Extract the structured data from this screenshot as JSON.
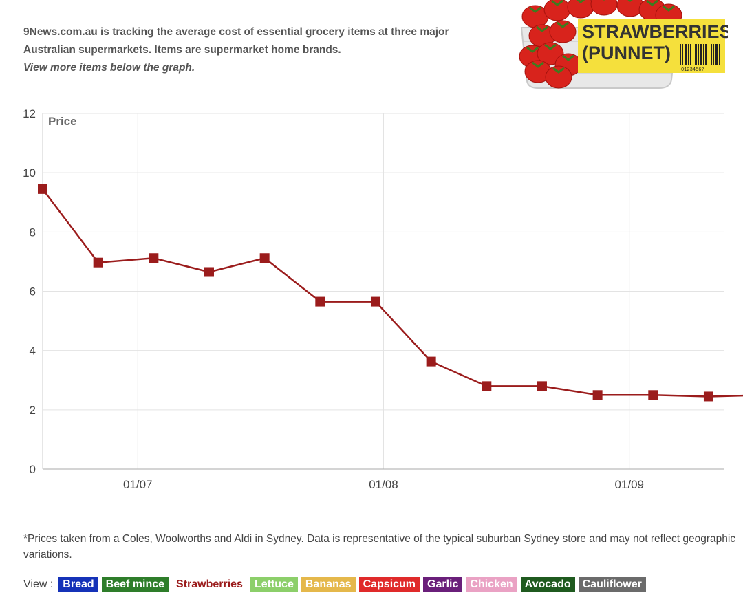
{
  "intro": {
    "line1": "9News.com.au is tracking the average cost of essential grocery items at three major",
    "line2": "Australian supermarkets. Items are supermarket home brands.",
    "line3": "View more items below the graph."
  },
  "badge": {
    "label_line1": "STRAWBERRIES",
    "label_line2": "(PUNNET)",
    "barcode_digits": "0123456?",
    "label_bg": "#f5e03c",
    "strawberry_color": "#d8231c",
    "icon": "strawberries-punnet-image"
  },
  "chart_data": {
    "type": "line",
    "ylabel": "Price",
    "ylim": [
      0,
      12
    ],
    "yticks": [
      0,
      2,
      4,
      6,
      8,
      10,
      12
    ],
    "xlim": [
      "2023-06-19",
      "2023-09-13"
    ],
    "xticks": [
      {
        "date": "2023-07-01",
        "label": "01/07"
      },
      {
        "date": "2023-08-01",
        "label": "01/08"
      },
      {
        "date": "2023-09-01",
        "label": "01/09"
      }
    ],
    "grid": true,
    "series": [
      {
        "name": "Strawberries",
        "color": "#9b1c1c",
        "points": [
          {
            "x": "2023-06-19",
            "y": 9.45
          },
          {
            "x": "2023-06-26",
            "y": 6.97
          },
          {
            "x": "2023-07-03",
            "y": 7.12
          },
          {
            "x": "2023-07-10",
            "y": 6.65
          },
          {
            "x": "2023-07-17",
            "y": 7.12
          },
          {
            "x": "2023-07-24",
            "y": 5.65
          },
          {
            "x": "2023-07-31",
            "y": 5.65
          },
          {
            "x": "2023-08-07",
            "y": 3.63
          },
          {
            "x": "2023-08-14",
            "y": 2.8
          },
          {
            "x": "2023-08-21",
            "y": 2.8
          },
          {
            "x": "2023-08-28",
            "y": 2.5
          },
          {
            "x": "2023-09-04",
            "y": 2.5
          },
          {
            "x": "2023-09-11",
            "y": 2.45
          },
          {
            "x": "2023-09-18",
            "y": 2.5
          }
        ]
      }
    ]
  },
  "footnote": "*Prices taken from a Coles, Woolworths and Aldi in Sydney. Data is representative of the typical suburban Sydney store and may not reflect geographic variations.",
  "view": {
    "label": "View :",
    "items": [
      {
        "label": "Bread",
        "color": "#1532b8",
        "active": false
      },
      {
        "label": "Beef mince",
        "color": "#2e7d2a",
        "active": false
      },
      {
        "label": "Strawberries",
        "color": "#9b1c1c",
        "active": true
      },
      {
        "label": "Lettuce",
        "color": "#8ccf6a",
        "active": false
      },
      {
        "label": "Bananas",
        "color": "#e5b84b",
        "active": false
      },
      {
        "label": "Capsicum",
        "color": "#e02a2a",
        "active": false
      },
      {
        "label": "Garlic",
        "color": "#6a1f7a",
        "active": false
      },
      {
        "label": "Chicken",
        "color": "#eaa2c4",
        "active": false
      },
      {
        "label": "Avocado",
        "color": "#1f5a1f",
        "active": false
      },
      {
        "label": "Cauliflower",
        "color": "#6b6b6b",
        "active": false
      }
    ]
  }
}
